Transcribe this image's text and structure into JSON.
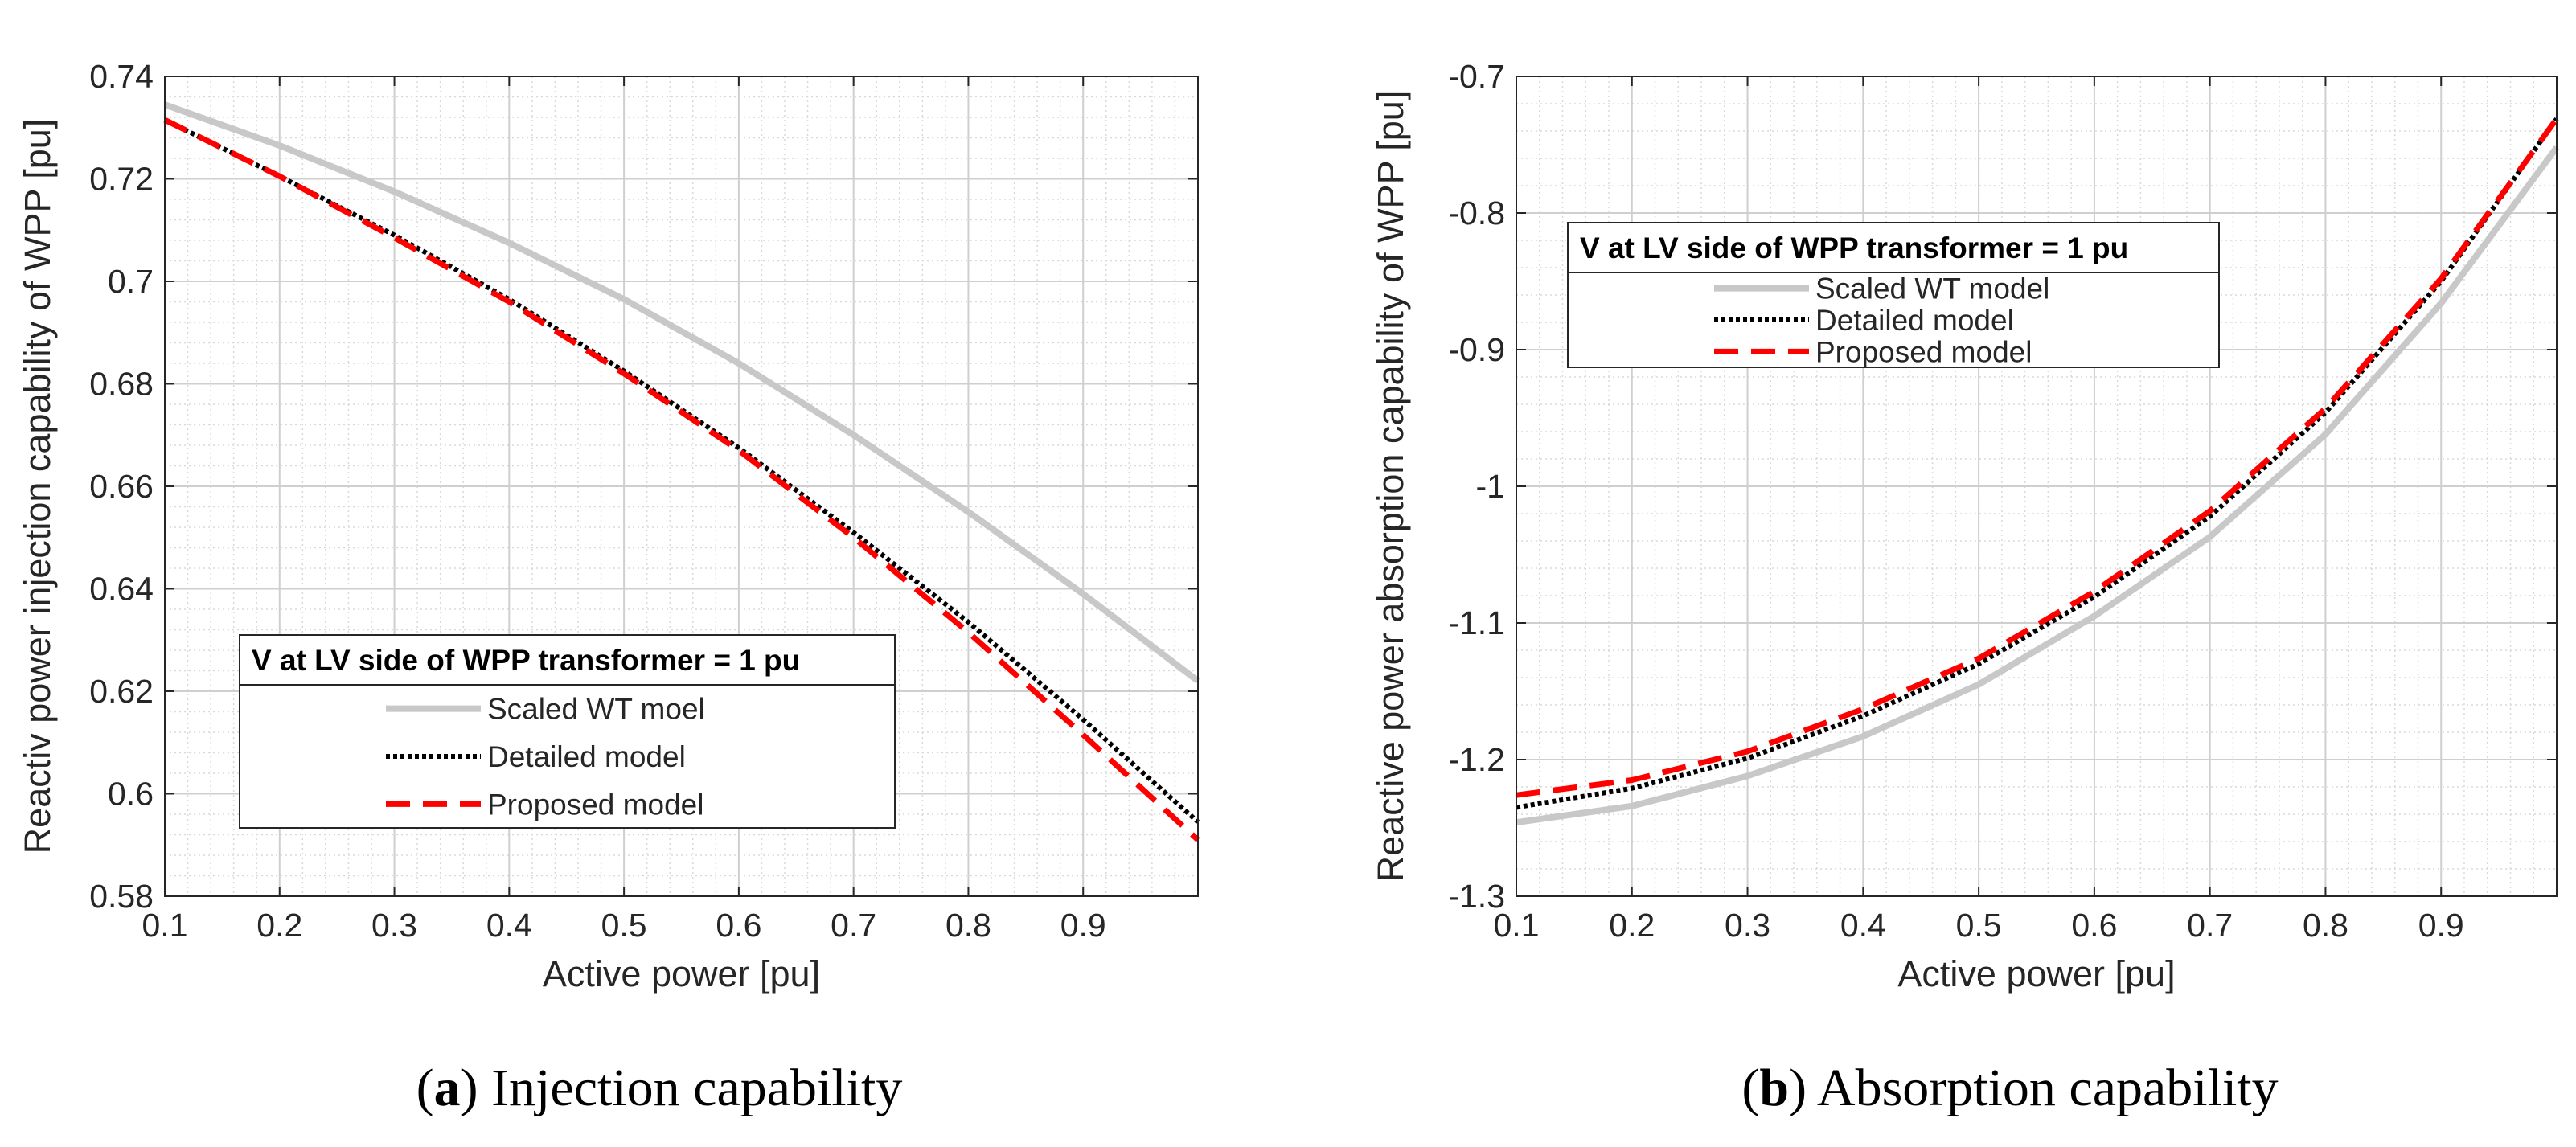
{
  "chart_data": [
    {
      "type": "line",
      "caption_letter": "a",
      "caption_text": "Injection capability",
      "xlabel": "Active power [pu]",
      "ylabel": "Reactiv power injection capability of WPP [pu]",
      "xlim": [
        0.1,
        1.0
      ],
      "ylim": [
        0.58,
        0.74
      ],
      "xticks": [
        0.1,
        0.2,
        0.3,
        0.4,
        0.5,
        0.6,
        0.7,
        0.8,
        0.9
      ],
      "xtick_labels": [
        "0.1",
        "0.2",
        "0.3",
        "0.4",
        "0.5",
        "0.6",
        "0.7",
        "0.8",
        "0.9"
      ],
      "yticks": [
        0.58,
        0.6,
        0.62,
        0.64,
        0.66,
        0.68,
        0.7,
        0.72,
        0.74
      ],
      "ytick_labels": [
        "0.58",
        "0.6",
        "0.62",
        "0.64",
        "0.66",
        "0.68",
        "0.7",
        "0.72",
        "0.74"
      ],
      "grid": true,
      "legend_title": "V at LV side of WPP transformer = 1 pu",
      "legend_position": "lower-left",
      "x": [
        0.1,
        0.2,
        0.3,
        0.4,
        0.5,
        0.6,
        0.7,
        0.8,
        0.9,
        1.0
      ],
      "series": [
        {
          "name": "Scaled WT moel",
          "color": "#c8c8c8",
          "style": "solid",
          "values": [
            0.7345,
            0.7265,
            0.7175,
            0.7075,
            0.6965,
            0.684,
            0.67,
            0.655,
            0.639,
            0.622
          ]
        },
        {
          "name": "Detailed model",
          "color": "#000000",
          "style": "dotted",
          "values": [
            0.7315,
            0.7205,
            0.709,
            0.6965,
            0.6825,
            0.6675,
            0.651,
            0.6335,
            0.6145,
            0.5945
          ]
        },
        {
          "name": "Proposed model",
          "color": "#ff0000",
          "style": "dashed",
          "values": [
            0.7315,
            0.7205,
            0.7085,
            0.696,
            0.682,
            0.667,
            0.65,
            0.6315,
            0.6115,
            0.591
          ]
        }
      ]
    },
    {
      "type": "line",
      "caption_letter": "b",
      "caption_text": "Absorption capability",
      "xlabel": "Active power [pu]",
      "ylabel": "Reactive power absorption capability of WPP [pu]",
      "xlim": [
        0.1,
        1.0
      ],
      "ylim": [
        -1.3,
        -0.7
      ],
      "xticks": [
        0.1,
        0.2,
        0.3,
        0.4,
        0.5,
        0.6,
        0.7,
        0.8,
        0.9
      ],
      "xtick_labels": [
        "0.1",
        "0.2",
        "0.3",
        "0.4",
        "0.5",
        "0.6",
        "0.7",
        "0.8",
        "0.9"
      ],
      "yticks": [
        -1.3,
        -1.2,
        -1.1,
        -1.0,
        -0.9,
        -0.8,
        -0.7
      ],
      "ytick_labels": [
        "-1.3",
        "-1.2",
        "-1.1",
        "-1",
        "-0.9",
        "-0.8",
        "-0.7"
      ],
      "grid": true,
      "legend_title": "V at LV side of WPP transformer = 1 pu",
      "legend_position": "upper-left",
      "x": [
        0.1,
        0.2,
        0.3,
        0.4,
        0.5,
        0.6,
        0.7,
        0.8,
        0.9,
        1.0
      ],
      "series": [
        {
          "name": "Scaled WT model",
          "color": "#c8c8c8",
          "style": "solid",
          "values": [
            -1.246,
            -1.234,
            -1.212,
            -1.183,
            -1.145,
            -1.095,
            -1.037,
            -0.962,
            -0.866,
            -0.752
          ]
        },
        {
          "name": "Detailed model",
          "color": "#000000",
          "style": "dotted",
          "values": [
            -1.235,
            -1.221,
            -1.199,
            -1.168,
            -1.13,
            -1.081,
            -1.022,
            -0.946,
            -0.85,
            -0.731
          ]
        },
        {
          "name": "Proposed model",
          "color": "#ff0000",
          "style": "dashed",
          "values": [
            -1.226,
            -1.215,
            -1.194,
            -1.163,
            -1.126,
            -1.077,
            -1.018,
            -0.943,
            -0.848,
            -0.731
          ]
        }
      ]
    }
  ]
}
